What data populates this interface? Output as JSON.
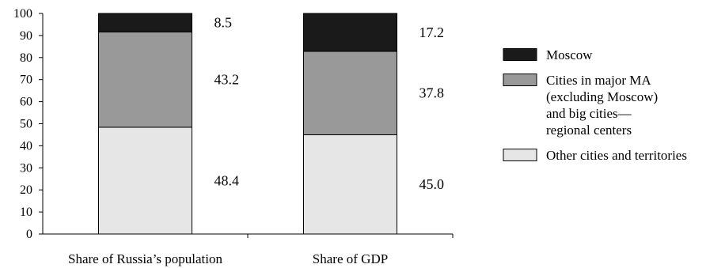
{
  "chart_data": {
    "type": "bar",
    "stacked": true,
    "categories": [
      "Share of Russia’s population",
      "Share of GDP"
    ],
    "series": [
      {
        "name": "Other cities and territories",
        "values": [
          48.4,
          45.0
        ],
        "value_labels": [
          "48.4",
          "45.0"
        ],
        "color": "#e6e6e6"
      },
      {
        "name": "Cities in major MA (excluding Moscow) and big cities—regional centers",
        "legend_lines": [
          "Cities in major MA",
          "(excluding Moscow)",
          "and big cities—",
          "regional centers"
        ],
        "values": [
          43.2,
          37.8
        ],
        "value_labels": [
          "43.2",
          "37.8"
        ],
        "color": "#999999"
      },
      {
        "name": "Moscow",
        "values": [
          8.5,
          17.2
        ],
        "value_labels": [
          "8.5",
          "17.2"
        ],
        "color": "#1a1a1a"
      }
    ],
    "legend_order": [
      2,
      1,
      0
    ],
    "ylim": [
      0,
      100
    ],
    "yticks": [
      0,
      10,
      20,
      30,
      40,
      50,
      60,
      70,
      80,
      90,
      100
    ],
    "ytick_labels": [
      "0",
      "10",
      "20",
      "30",
      "40",
      "50",
      "60",
      "70",
      "80",
      "90",
      "100"
    ],
    "xlabel": "",
    "ylabel": "",
    "grid": false,
    "legend_position": "right"
  }
}
